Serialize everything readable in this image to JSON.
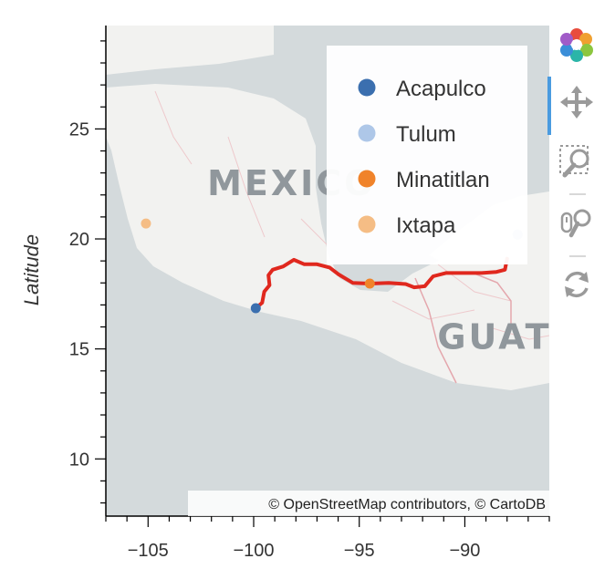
{
  "map": {
    "country_labels": [
      {
        "text": "MEXICO",
        "lon": -102.2,
        "lat": 22.0
      },
      {
        "text": "GUATEMAL",
        "lon": -91.3,
        "lat": 15.0
      }
    ],
    "attribution": "© OpenStreetMap contributors, © CartoDB"
  },
  "axes": {
    "ylabel": "Latitude",
    "xlim": [
      -107,
      -86
    ],
    "ylim": [
      7.4,
      29.7
    ],
    "x_ticks": [
      -105,
      -100,
      -95,
      -90
    ],
    "x_tick_labels": [
      "−105",
      "−100",
      "−95",
      "−90"
    ],
    "y_ticks": [
      10,
      15,
      20,
      25
    ],
    "y_tick_labels": [
      "10",
      "15",
      "20",
      "25"
    ]
  },
  "chart_data": {
    "type": "scatter",
    "points": [
      {
        "name": "Acapulco",
        "lon": -99.9,
        "lat": 16.85,
        "color": "#3b6faf"
      },
      {
        "name": "Tulum",
        "lon": -87.5,
        "lat": 20.2,
        "color": "#aec7e8"
      },
      {
        "name": "Minatitlan",
        "lon": -94.5,
        "lat": 17.97,
        "color": "#f0832a"
      },
      {
        "name": "Ixtapa",
        "lon": -105.1,
        "lat": 20.7,
        "color": "#f5bd85"
      }
    ],
    "route": {
      "color": "#e0281e",
      "path": [
        [
          -99.9,
          16.85
        ],
        [
          -99.6,
          17.1
        ],
        [
          -99.5,
          17.6
        ],
        [
          -99.25,
          17.9
        ],
        [
          -99.3,
          18.35
        ],
        [
          -99.1,
          18.6
        ],
        [
          -98.6,
          18.75
        ],
        [
          -98.1,
          19.05
        ],
        [
          -97.6,
          18.85
        ],
        [
          -97.0,
          18.85
        ],
        [
          -96.4,
          18.7
        ],
        [
          -96.0,
          18.4
        ],
        [
          -95.3,
          18.0
        ],
        [
          -94.5,
          17.97
        ],
        [
          -93.6,
          18.0
        ],
        [
          -92.8,
          17.95
        ],
        [
          -92.4,
          17.8
        ],
        [
          -91.9,
          17.85
        ],
        [
          -91.5,
          18.3
        ],
        [
          -90.9,
          18.45
        ],
        [
          -90.0,
          18.45
        ],
        [
          -89.2,
          18.45
        ],
        [
          -88.5,
          18.5
        ],
        [
          -88.1,
          18.6
        ],
        [
          -88.0,
          19.1
        ]
      ]
    }
  },
  "legend": {
    "items": [
      {
        "label": "Acapulco",
        "color": "#3b6faf"
      },
      {
        "label": "Tulum",
        "color": "#aec7e8"
      },
      {
        "label": "Minatitlan",
        "color": "#f0832a"
      },
      {
        "label": "Ixtapa",
        "color": "#f5bd85"
      }
    ]
  },
  "toolbar": {
    "tools": [
      {
        "name": "bokeh-logo-icon"
      },
      {
        "name": "pan-tool",
        "active": true
      },
      {
        "name": "box-zoom-tool"
      },
      {
        "name": "wheel-zoom-tool"
      },
      {
        "name": "reset-tool"
      }
    ]
  }
}
